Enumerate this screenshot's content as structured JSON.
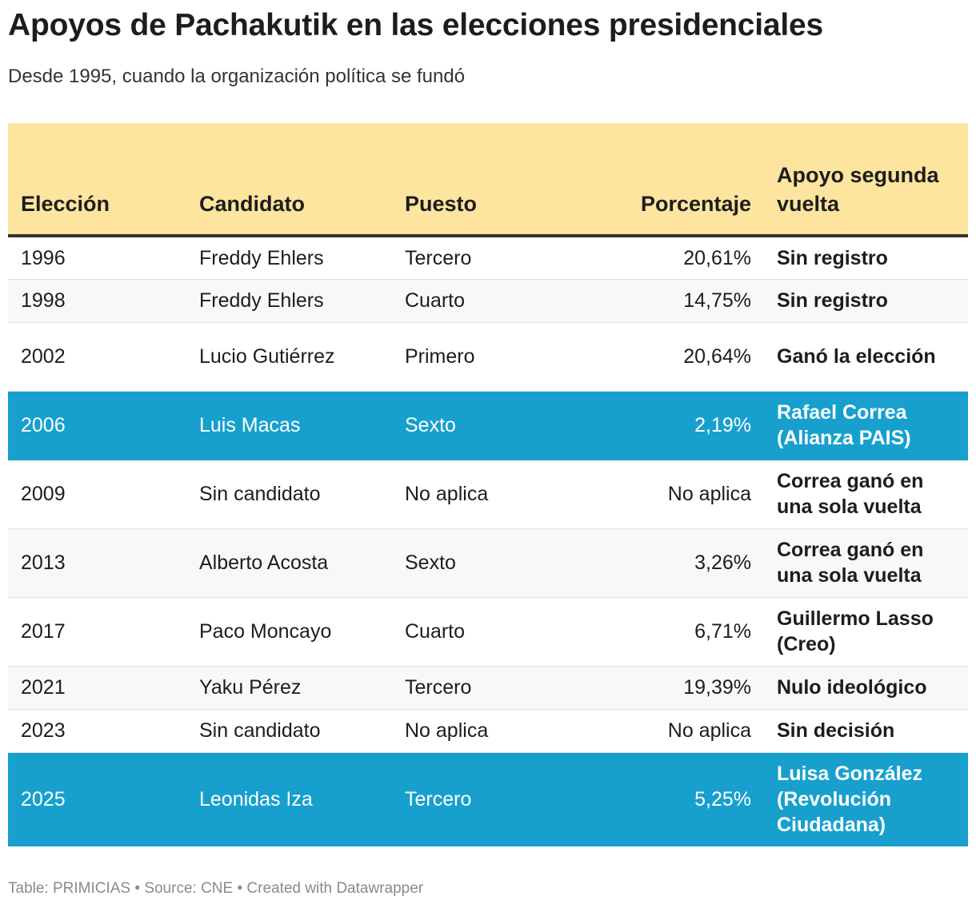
{
  "title": "Apoyos de Pachakutik en las elecciones presidenciales",
  "subtitle": "Desde 1995, cuando la organización política se fundó",
  "footer": "Table: PRIMICIAS • Source: CNE • Created with Datawrapper",
  "colors": {
    "header_bg": "#fde49f",
    "highlight_bg": "#17a0cd",
    "highlight_text": "#ffffff"
  },
  "chart_data": {
    "type": "table",
    "columns": [
      "Elección",
      "Candidato",
      "Puesto",
      "Porcentaje",
      "Apoyo segunda vuelta"
    ],
    "rows": [
      {
        "eleccion": "1996",
        "candidato": "Freddy Ehlers",
        "puesto": "Tercero",
        "porcentaje": "20,61%",
        "apoyo": "Sin registro",
        "highlight": false
      },
      {
        "eleccion": "1998",
        "candidato": "Freddy Ehlers",
        "puesto": "Cuarto",
        "porcentaje": "14,75%",
        "apoyo": "Sin registro",
        "highlight": false
      },
      {
        "eleccion": "2002",
        "candidato": "Lucio Gutiérrez",
        "puesto": "Primero",
        "porcentaje": "20,64%",
        "apoyo": "Ganó la elección",
        "highlight": false
      },
      {
        "eleccion": "2006",
        "candidato": "Luis Macas",
        "puesto": "Sexto",
        "porcentaje": "2,19%",
        "apoyo": "Rafael Correa (Alianza PAIS)",
        "highlight": true
      },
      {
        "eleccion": "2009",
        "candidato": "Sin candidato",
        "puesto": "No aplica",
        "porcentaje": "No aplica",
        "apoyo": "Correa ganó en una sola vuelta",
        "highlight": false
      },
      {
        "eleccion": "2013",
        "candidato": "Alberto Acosta",
        "puesto": "Sexto",
        "porcentaje": "3,26%",
        "apoyo": "Correa ganó en una sola vuelta",
        "highlight": false
      },
      {
        "eleccion": "2017",
        "candidato": "Paco Moncayo",
        "puesto": "Cuarto",
        "porcentaje": "6,71%",
        "apoyo": "Guillermo Lasso (Creo)",
        "highlight": false
      },
      {
        "eleccion": "2021",
        "candidato": "Yaku Pérez",
        "puesto": "Tercero",
        "porcentaje": "19,39%",
        "apoyo": "Nulo ideológico",
        "highlight": false
      },
      {
        "eleccion": "2023",
        "candidato": "Sin candidato",
        "puesto": "No aplica",
        "porcentaje": "No aplica",
        "apoyo": "Sin decisión",
        "highlight": false
      },
      {
        "eleccion": "2025",
        "candidato": "Leonidas Iza",
        "puesto": "Tercero",
        "porcentaje": "5,25%",
        "apoyo": "Luisa González (Revolución Ciudadana)",
        "highlight": true
      }
    ]
  }
}
